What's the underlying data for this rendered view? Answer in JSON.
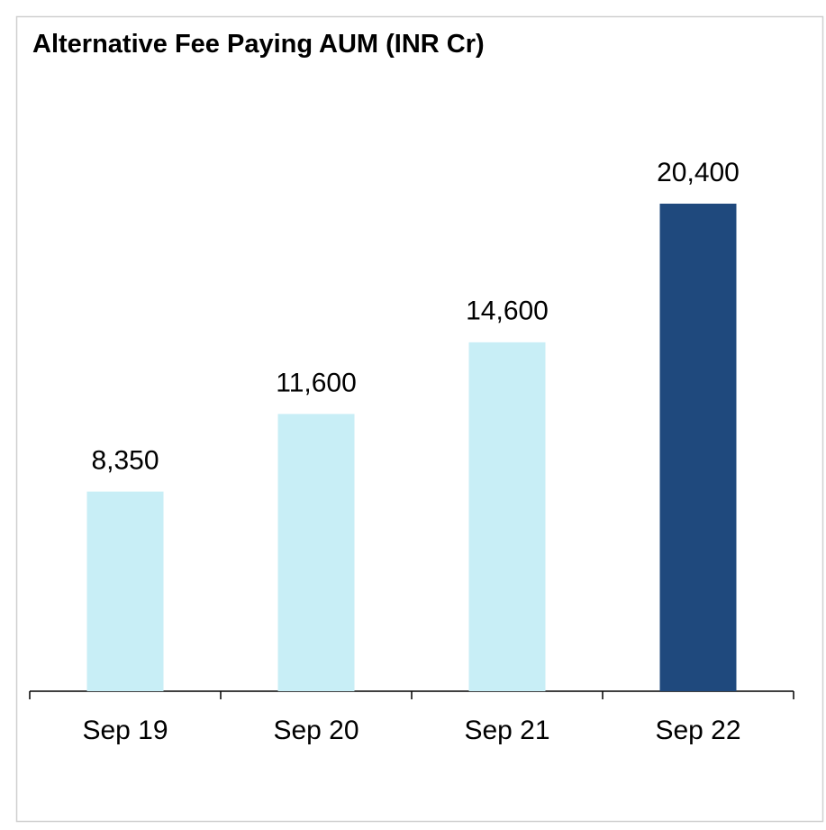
{
  "chart_data": {
    "type": "bar",
    "title": "Alternative Fee Paying AUM (INR Cr)",
    "categories": [
      "Sep 19",
      "Sep 20",
      "Sep 21",
      "Sep 22"
    ],
    "values": [
      8350,
      11600,
      14600,
      20400
    ],
    "value_labels": [
      "8,350",
      "11,600",
      "14,600",
      "20,400"
    ],
    "colors": [
      "#c8eef6",
      "#c8eef6",
      "#c8eef6",
      "#1f497d"
    ]
  }
}
